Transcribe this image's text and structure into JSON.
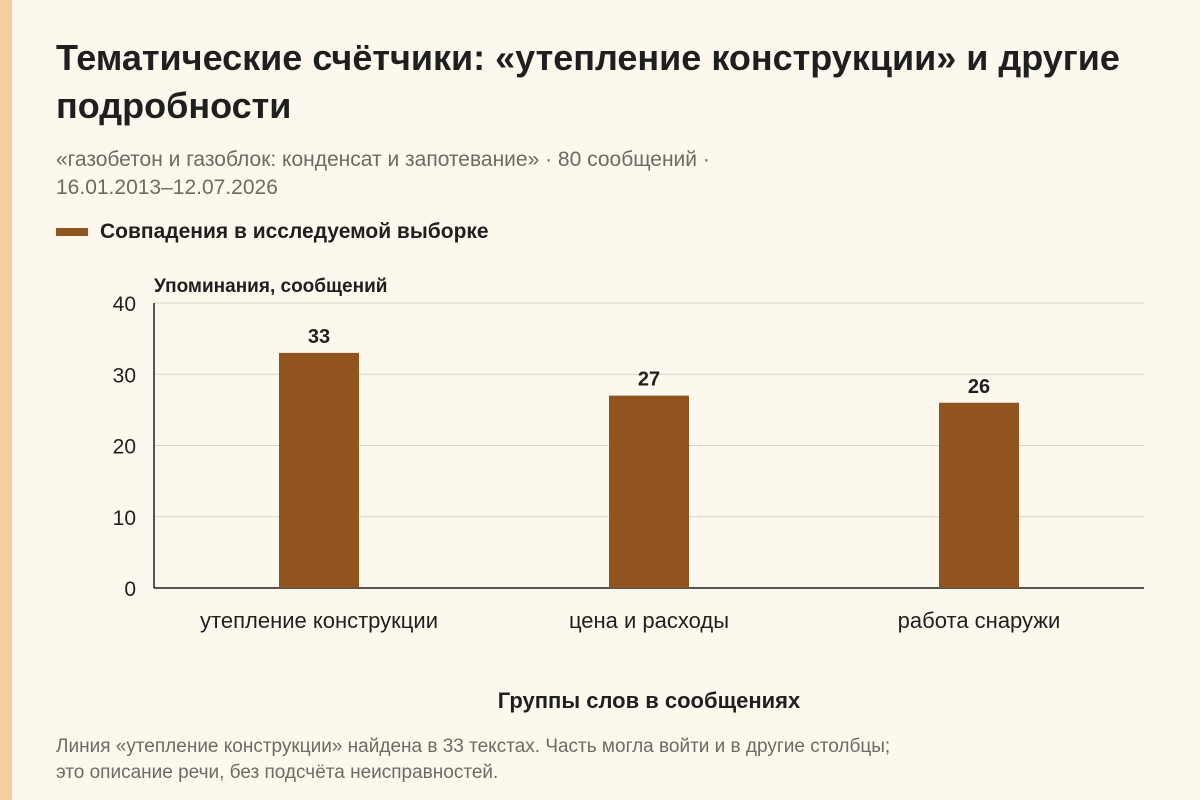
{
  "page": {
    "title": "Тематические счётчики: «утепление конструкции» и другие подробности",
    "subtitle_line1": "«газобетон и газоблок: конденсат и запотевание» · 80 сообщений ·",
    "subtitle_line2": "16.01.2013–12.07.2026",
    "note_line1": "Линия «утепление конструкции» найдена в 33 текстах. Часть могла войти и в другие столбцы;",
    "note_line2": "это описание речи, без подсчёта неисправностей."
  },
  "chart_data": {
    "type": "bar",
    "categories": [
      "утепление конструкции",
      "цена и расходы",
      "работа снаружи"
    ],
    "series": [
      {
        "name": "Совпадения в исследуемой выборке",
        "values": [
          33,
          27,
          26
        ],
        "color": "#92541f"
      }
    ],
    "xlabel": "Группы слов в сообщениях",
    "ylabel": "Упоминания, сообщений",
    "ylim": [
      0,
      40
    ],
    "yticks": [
      0,
      10,
      20,
      30,
      40
    ],
    "grid": true,
    "data_labels": true,
    "legend": "top-left"
  },
  "colors": {
    "background": "#fdf8ee",
    "bar": "#92541f",
    "accent_strip": "#f4cfa0",
    "grid": "#d9d4cb",
    "axis": "#1f1f1f"
  }
}
